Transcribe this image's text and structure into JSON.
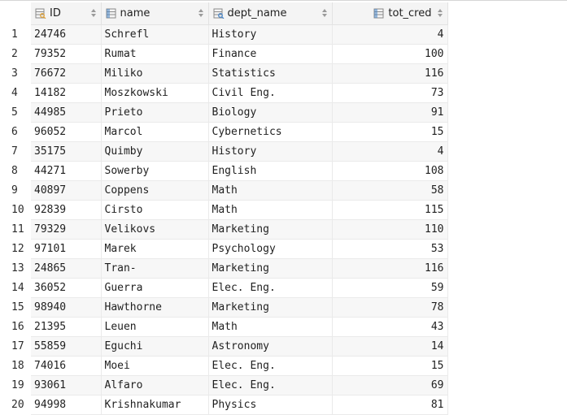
{
  "columns": [
    {
      "label": "ID",
      "icon": "key-column-icon",
      "align": "left"
    },
    {
      "label": "name",
      "icon": "column-icon",
      "align": "left"
    },
    {
      "label": "dept_name",
      "icon": "foreign-key-column-icon",
      "align": "left"
    },
    {
      "label": "tot_cred",
      "icon": "column-icon",
      "align": "right"
    }
  ],
  "rows": [
    {
      "n": "1",
      "id": "24746",
      "name": "Schrefl",
      "dept": "History",
      "cred": "4"
    },
    {
      "n": "2",
      "id": "79352",
      "name": "Rumat",
      "dept": "Finance",
      "cred": "100"
    },
    {
      "n": "3",
      "id": "76672",
      "name": "Miliko",
      "dept": "Statistics",
      "cred": "116"
    },
    {
      "n": "4",
      "id": "14182",
      "name": "Moszkowski",
      "dept": "Civil Eng.",
      "cred": "73"
    },
    {
      "n": "5",
      "id": "44985",
      "name": "Prieto",
      "dept": "Biology",
      "cred": "91"
    },
    {
      "n": "6",
      "id": "96052",
      "name": "Marcol",
      "dept": "Cybernetics",
      "cred": "15"
    },
    {
      "n": "7",
      "id": "35175",
      "name": "Quimby",
      "dept": "History",
      "cred": "4"
    },
    {
      "n": "8",
      "id": "44271",
      "name": "Sowerby",
      "dept": "English",
      "cred": "108"
    },
    {
      "n": "9",
      "id": "40897",
      "name": "Coppens",
      "dept": "Math",
      "cred": "58"
    },
    {
      "n": "10",
      "id": "92839",
      "name": "Cirsto",
      "dept": "Math",
      "cred": "115"
    },
    {
      "n": "11",
      "id": "79329",
      "name": "Velikovs",
      "dept": "Marketing",
      "cred": "110"
    },
    {
      "n": "12",
      "id": "97101",
      "name": "Marek",
      "dept": "Psychology",
      "cred": "53"
    },
    {
      "n": "13",
      "id": "24865",
      "name": "Tran-",
      "dept": "Marketing",
      "cred": "116"
    },
    {
      "n": "14",
      "id": "36052",
      "name": "Guerra",
      "dept": "Elec. Eng.",
      "cred": "59"
    },
    {
      "n": "15",
      "id": "98940",
      "name": "Hawthorne",
      "dept": "Marketing",
      "cred": "78"
    },
    {
      "n": "16",
      "id": "21395",
      "name": "Leuen",
      "dept": "Math",
      "cred": "43"
    },
    {
      "n": "17",
      "id": "55859",
      "name": "Eguchi",
      "dept": "Astronomy",
      "cred": "14"
    },
    {
      "n": "18",
      "id": "74016",
      "name": "Moei",
      "dept": "Elec. Eng.",
      "cred": "15"
    },
    {
      "n": "19",
      "id": "93061",
      "name": "Alfaro",
      "dept": "Elec. Eng.",
      "cred": "69"
    },
    {
      "n": "20",
      "id": "94998",
      "name": "Krishnakumar",
      "dept": "Physics",
      "cred": "81"
    }
  ],
  "colors": {
    "icon_blue": "#4a86c7",
    "icon_gold": "#e0a23a",
    "icon_gray": "#8a8a8a",
    "sort_gray": "#9a9a9a"
  }
}
